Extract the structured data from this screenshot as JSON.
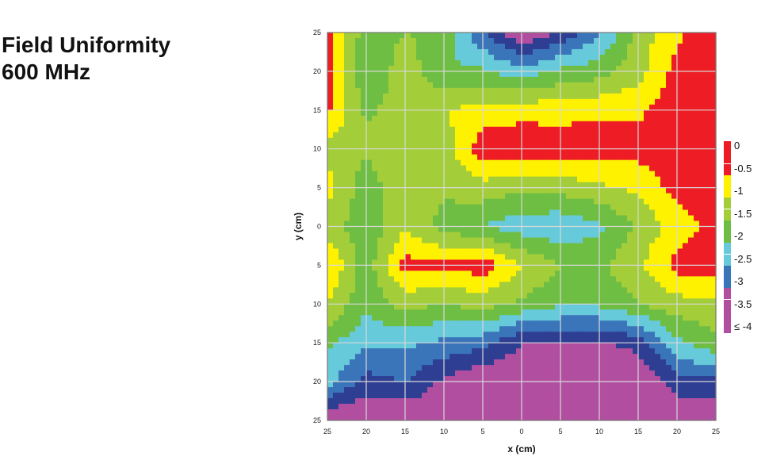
{
  "title": {
    "line1": "Field Uniformity",
    "line2": "600 MHz"
  },
  "chart_data": {
    "type": "heatmap",
    "xlabel": "x (cm)",
    "ylabel": "y (cm)",
    "xlim": [
      -25,
      25
    ],
    "ylim": [
      -25,
      25
    ],
    "x_tick_labels": [
      "25",
      "20",
      "15",
      "10",
      "5",
      "0",
      "5",
      "10",
      "15",
      "20",
      "25"
    ],
    "y_tick_labels": [
      "25",
      "20",
      "15",
      "10",
      "5",
      "0",
      "5",
      "10",
      "15",
      "20",
      "25"
    ],
    "grid": true,
    "x": [
      -25,
      -20,
      -15,
      -10,
      -5,
      0,
      5,
      10,
      15,
      20,
      25
    ],
    "y": [
      25,
      20,
      15,
      10,
      5,
      0,
      -5,
      -10,
      -15,
      -20,
      -25
    ],
    "z": [
      [
        -0.3,
        -1.8,
        -1.5,
        -1.6,
        -3.0,
        -4.0,
        -3.4,
        -2.6,
        -1.3,
        -0.6,
        -0.2
      ],
      [
        -0.2,
        -2.0,
        -1.2,
        -2.0,
        -1.9,
        -2.3,
        -1.9,
        -1.7,
        -1.2,
        -0.3,
        -0.2
      ],
      [
        -0.4,
        -1.6,
        -1.2,
        -1.0,
        -0.8,
        -0.7,
        -0.7,
        -0.6,
        -0.6,
        -0.2,
        -0.1
      ],
      [
        -1.2,
        -1.4,
        -1.0,
        -1.3,
        -0.2,
        -0.1,
        -0.2,
        -0.2,
        -0.3,
        -0.2,
        -0.2
      ],
      [
        -0.8,
        -1.8,
        -1.1,
        -1.4,
        -1.2,
        -1.4,
        -1.3,
        -1.1,
        -0.9,
        -0.3,
        -0.2
      ],
      [
        -1.2,
        -1.9,
        -1.1,
        -1.7,
        -2.0,
        -2.3,
        -2.4,
        -2.1,
        -1.4,
        -0.8,
        -0.3
      ],
      [
        -0.5,
        -1.8,
        -0.3,
        -0.4,
        -0.2,
        -1.0,
        -1.5,
        -1.6,
        -1.1,
        -0.3,
        -0.1
      ],
      [
        -1.0,
        -1.9,
        -1.3,
        -1.5,
        -1.3,
        -1.6,
        -1.9,
        -1.9,
        -1.5,
        -1.2,
        -1.2
      ],
      [
        -1.9,
        -2.4,
        -2.4,
        -2.6,
        -2.8,
        -3.5,
        -3.6,
        -3.6,
        -3.3,
        -2.1,
        -1.6
      ],
      [
        -2.3,
        -3.2,
        -3.0,
        -3.6,
        -4.0,
        -4.0,
        -4.0,
        -4.0,
        -4.0,
        -3.2,
        -3.1
      ],
      [
        -4.0,
        -4.0,
        -4.0,
        -4.0,
        -4.0,
        -4.0,
        -4.0,
        -4.0,
        -4.0,
        -4.0,
        -4.0
      ]
    ],
    "legend": {
      "labels": [
        "0",
        "-0.5",
        "-1",
        "-1.5",
        "-2",
        "-2.5",
        "-3",
        "-3.5",
        "≤ -4"
      ],
      "colors": [
        "#ee1c25",
        "#ee1c25",
        "#fff200",
        "#a3cd39",
        "#6fbe44",
        "#67cadb",
        "#3a75b9",
        "#b14ea0",
        "#b14ea0"
      ],
      "placement": "right"
    },
    "levels": [
      -4,
      -3.5,
      -3,
      -2.5,
      -2,
      -1.5,
      -1,
      -0.5
    ],
    "level_colors": [
      "#b14ea0",
      "#2e3e93",
      "#3a75b9",
      "#67cadb",
      "#6fbe44",
      "#a3cd39",
      "#fff200",
      "#ee1c25"
    ]
  }
}
